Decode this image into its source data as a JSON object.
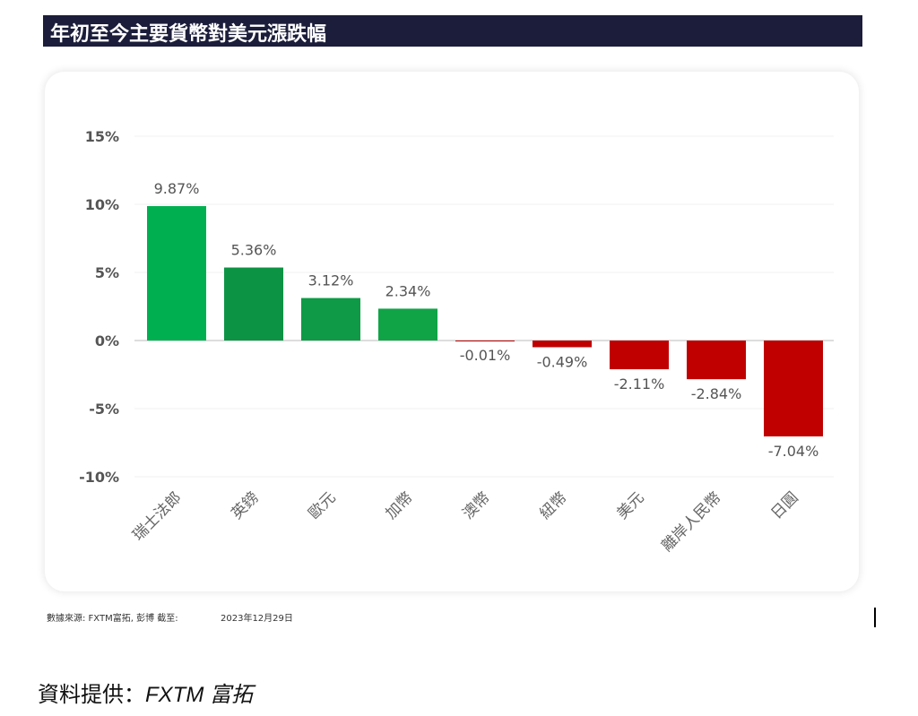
{
  "chart_data": {
    "type": "bar",
    "title": "年初至今主要貨幣對美元漲跌幅",
    "categories": [
      "瑞士法郎",
      "英鎊",
      "歐元",
      "加幣",
      "澳幣",
      "紐幣",
      "美元",
      "離岸人民幣",
      "日圓"
    ],
    "values": [
      9.87,
      5.36,
      3.12,
      2.34,
      -0.01,
      -0.49,
      -2.11,
      -2.84,
      -7.04
    ],
    "value_labels": [
      "9.87%",
      "5.36%",
      "3.12%",
      "2.34%",
      "-0.01%",
      "-0.49%",
      "-2.11%",
      "-2.84%",
      "-7.04%"
    ],
    "colors": [
      "#00b050",
      "#0c9444",
      "#0e9a46",
      "#10a447",
      "#c00000",
      "#c00000",
      "#c00000",
      "#c00000",
      "#c00000"
    ],
    "ylim": [
      -10,
      15
    ],
    "yticks": [
      {
        "value": -10,
        "label": "-10%"
      },
      {
        "value": -5,
        "label": "-5%"
      },
      {
        "value": 0,
        "label": "0%"
      },
      {
        "value": 5,
        "label": "5%"
      },
      {
        "value": 10,
        "label": "10%"
      },
      {
        "value": 15,
        "label": "15%"
      }
    ],
    "grid": true,
    "source": "數據來源: FXTM富拓, 彭博 截至:",
    "date": "2023年12月29日"
  },
  "caption": {
    "label": "資料提供：",
    "value": "FXTM 富拓"
  }
}
